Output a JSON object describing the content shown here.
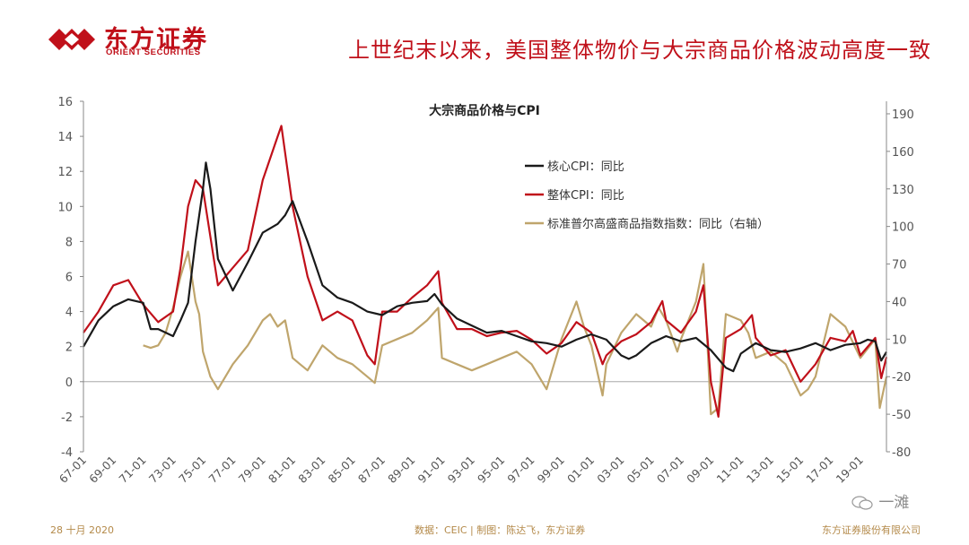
{
  "brand": {
    "name_cn": "东方证券",
    "name_en": "ORIENT SECURITIES"
  },
  "slide_title": "上世纪末以来，美国整体物价与大宗商品价格波动高度一致",
  "footer": {
    "date": "28 十月 2020",
    "source": "数据：CEIC | 制图：陈达飞，东方证券",
    "company": "东方证券股份有限公司"
  },
  "watermark": {
    "text": "一滩"
  },
  "colors": {
    "core": "#1a1a1a",
    "headline": "#c0101a",
    "gsci": "#bfa56c",
    "brand": "#c0101a"
  },
  "chart_data": {
    "type": "line",
    "title": "大宗商品价格与CPI",
    "categories": [
      "67-01",
      "69-01",
      "71-01",
      "73-01",
      "75-01",
      "77-01",
      "79-01",
      "81-01",
      "83-01",
      "85-01",
      "87-01",
      "89-01",
      "91-01",
      "93-01",
      "95-01",
      "97-01",
      "99-01",
      "01-01",
      "03-01",
      "05-01",
      "07-01",
      "09-01",
      "11-01",
      "13-01",
      "15-01",
      "17-01",
      "19-01"
    ],
    "x_range": [
      1967,
      2020.75
    ],
    "y_left": {
      "min": -4,
      "max": 16,
      "ticks": [
        -4,
        -2,
        0,
        2,
        4,
        6,
        8,
        10,
        12,
        14,
        16
      ]
    },
    "y_right": {
      "min": -80,
      "max": 200,
      "ticks": [
        -80,
        -50,
        -20,
        10,
        40,
        70,
        100,
        130,
        160,
        190
      ]
    },
    "legend": [
      "核心CPI：同比",
      "整体CPI：同比",
      "标准普尔高盛商品指数指数：同比（右轴）"
    ],
    "series": [
      {
        "name": "核心CPI：同比",
        "axis": "left",
        "x": [
          1967.0,
          1968.0,
          1969.0,
          1970.0,
          1971.0,
          1971.5,
          1972.0,
          1973.0,
          1973.5,
          1974.0,
          1974.5,
          1975.0,
          1975.2,
          1975.5,
          1976.0,
          1977.0,
          1978.0,
          1979.0,
          1980.0,
          1980.5,
          1981.0,
          1982.0,
          1983.0,
          1984.0,
          1985.0,
          1986.0,
          1987.0,
          1988.0,
          1989.0,
          1990.0,
          1990.5,
          1991.0,
          1992.0,
          1993.0,
          1994.0,
          1995.0,
          1996.0,
          1997.0,
          1998.0,
          1999.0,
          2000.0,
          2001.0,
          2002.0,
          2003.0,
          2003.5,
          2004.0,
          2005.0,
          2006.0,
          2007.0,
          2008.0,
          2009.0,
          2010.0,
          2010.5,
          2011.0,
          2012.0,
          2013.0,
          2014.0,
          2015.0,
          2016.0,
          2017.0,
          2018.0,
          2019.0,
          2019.5,
          2020.0,
          2020.4,
          2020.75
        ],
        "y": [
          2.0,
          3.5,
          4.3,
          4.7,
          4.5,
          3.0,
          3.0,
          2.6,
          3.5,
          4.5,
          8.0,
          11.0,
          12.5,
          11.0,
          7.0,
          5.2,
          6.8,
          8.5,
          9.0,
          9.5,
          10.3,
          8.0,
          5.5,
          4.8,
          4.5,
          4.0,
          3.8,
          4.3,
          4.5,
          4.6,
          5.0,
          4.4,
          3.6,
          3.2,
          2.8,
          2.9,
          2.6,
          2.3,
          2.2,
          2.0,
          2.4,
          2.7,
          2.4,
          1.5,
          1.3,
          1.5,
          2.2,
          2.6,
          2.3,
          2.5,
          1.8,
          0.8,
          0.6,
          1.6,
          2.2,
          1.8,
          1.7,
          1.9,
          2.2,
          1.8,
          2.1,
          2.2,
          2.4,
          2.3,
          1.2,
          1.7
        ]
      },
      {
        "name": "整体CPI：同比",
        "axis": "left",
        "x": [
          1967.0,
          1968.0,
          1969.0,
          1970.0,
          1971.0,
          1972.0,
          1973.0,
          1973.5,
          1974.0,
          1974.5,
          1975.0,
          1976.0,
          1977.0,
          1978.0,
          1979.0,
          1980.0,
          1980.25,
          1981.0,
          1982.0,
          1983.0,
          1984.0,
          1985.0,
          1986.0,
          1986.5,
          1987.0,
          1988.0,
          1989.0,
          1990.0,
          1990.75,
          1991.0,
          1992.0,
          1993.0,
          1994.0,
          1995.0,
          1996.0,
          1997.0,
          1998.0,
          1999.0,
          2000.0,
          2001.0,
          2001.75,
          2002.0,
          2003.0,
          2004.0,
          2005.0,
          2005.75,
          2006.0,
          2007.0,
          2008.0,
          2008.5,
          2009.0,
          2009.5,
          2010.0,
          2011.0,
          2011.75,
          2012.0,
          2013.0,
          2014.0,
          2015.0,
          2016.0,
          2017.0,
          2018.0,
          2018.5,
          2019.0,
          2020.0,
          2020.4,
          2020.75
        ],
        "y": [
          2.8,
          4.0,
          5.5,
          5.8,
          4.4,
          3.4,
          4.0,
          6.5,
          10.0,
          11.5,
          11.0,
          5.5,
          6.5,
          7.5,
          11.5,
          14.0,
          14.6,
          10.0,
          6.0,
          3.5,
          4.0,
          3.5,
          1.5,
          1.0,
          4.0,
          4.0,
          4.8,
          5.5,
          6.3,
          4.5,
          3.0,
          3.0,
          2.6,
          2.8,
          2.9,
          2.4,
          1.6,
          2.2,
          3.4,
          2.8,
          1.0,
          1.5,
          2.3,
          2.7,
          3.4,
          4.6,
          3.5,
          2.8,
          4.0,
          5.5,
          0.0,
          -2.0,
          2.5,
          3.0,
          3.8,
          2.5,
          1.5,
          1.8,
          0.0,
          1.0,
          2.5,
          2.3,
          2.9,
          1.5,
          2.5,
          0.2,
          1.4
        ]
      },
      {
        "name": "标准普尔高盛商品指数指数：同比（右轴）",
        "axis": "right",
        "x": [
          1971.0,
          1971.5,
          1972.0,
          1972.5,
          1973.0,
          1973.5,
          1974.0,
          1974.5,
          1974.75,
          1975.0,
          1975.5,
          1976.0,
          1977.0,
          1978.0,
          1979.0,
          1979.5,
          1980.0,
          1980.5,
          1981.0,
          1981.5,
          1982.0,
          1983.0,
          1984.0,
          1985.0,
          1986.0,
          1986.5,
          1987.0,
          1988.0,
          1989.0,
          1990.0,
          1990.75,
          1991.0,
          1992.0,
          1993.0,
          1994.0,
          1995.0,
          1996.0,
          1997.0,
          1998.0,
          1999.0,
          2000.0,
          2000.5,
          2001.0,
          2001.75,
          2002.0,
          2003.0,
          2004.0,
          2005.0,
          2005.5,
          2006.0,
          2006.75,
          2007.0,
          2008.0,
          2008.5,
          2008.75,
          2009.0,
          2009.5,
          2010.0,
          2011.0,
          2011.5,
          2012.0,
          2013.0,
          2014.0,
          2015.0,
          2015.5,
          2016.0,
          2017.0,
          2018.0,
          2019.0,
          2020.0,
          2020.3,
          2020.75
        ],
        "y": [
          5.0,
          3.0,
          5.0,
          15.0,
          35.0,
          60.0,
          80.0,
          40.0,
          30.0,
          0.0,
          -20.0,
          -30.0,
          -10.0,
          5.0,
          25.0,
          30.0,
          20.0,
          25.0,
          -5.0,
          -10.0,
          -15.0,
          5.0,
          -5.0,
          -10.0,
          -20.0,
          -25.0,
          5.0,
          10.0,
          15.0,
          25.0,
          35.0,
          -5.0,
          -10.0,
          -15.0,
          -10.0,
          -5.0,
          0.0,
          -10.0,
          -30.0,
          10.0,
          40.0,
          20.0,
          5.0,
          -35.0,
          -10.0,
          15.0,
          30.0,
          20.0,
          35.0,
          25.0,
          0.0,
          10.0,
          40.0,
          70.0,
          10.0,
          -50.0,
          -45.0,
          30.0,
          25.0,
          15.0,
          -5.0,
          0.0,
          -10.0,
          -35.0,
          -30.0,
          -20.0,
          30.0,
          20.0,
          -5.0,
          10.0,
          -45.0,
          -20.0
        ]
      }
    ]
  }
}
